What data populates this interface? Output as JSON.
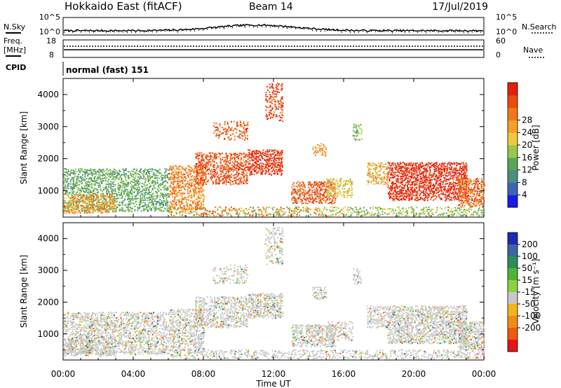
{
  "header": {
    "title": "Hokkaido East (fitACF)",
    "beam": "Beam 14",
    "date": "17/Jul/2019"
  },
  "noise_panel": {
    "left_label": "N.Sky",
    "right_label": "N.Search",
    "ticks_left": [
      "10^5",
      "10^0"
    ],
    "ticks_right": [
      "10^5",
      "10^0"
    ]
  },
  "freq_panel": {
    "left_label_line1": "Freq.",
    "left_label_line2": "[MHz]",
    "right_label": "Nave",
    "ticks_left": [
      "18",
      "8"
    ],
    "ticks_right": [
      "60",
      "0"
    ]
  },
  "cpid_panel": {
    "label": "CPID",
    "mode_text": "normal (fast) 151"
  },
  "time_axis": {
    "title": "Time UT",
    "ticks": [
      "00:00",
      "04:00",
      "08:00",
      "12:00",
      "16:00",
      "20:00",
      "00:00"
    ]
  },
  "chart_data": [
    {
      "type": "heatmap",
      "name_key": "power",
      "ylabel": "Slant Range [km]",
      "y_ticks": [
        1000,
        2000,
        3000,
        4000
      ],
      "ylim": [
        180,
        4500
      ],
      "xlim_hours": [
        0,
        24
      ],
      "colorbar_label": "Power [dB]",
      "colorbar_ticks": [
        "4",
        "8",
        "12",
        "16",
        "20",
        "24",
        "28"
      ],
      "colors": [
        "#1a1aee",
        "#3f64b4",
        "#4c8c82",
        "#5aa55a",
        "#96c84b",
        "#f0c83c",
        "#f5a028",
        "#f07819",
        "#eb4b0f",
        "#e61e0a"
      ]
    },
    {
      "type": "heatmap",
      "name_key": "velocity",
      "ylabel": "Slant Range [km]",
      "y_ticks": [
        1000,
        2000,
        3000,
        4000
      ],
      "ylim": [
        180,
        4500
      ],
      "xlim_hours": [
        0,
        24
      ],
      "colorbar_label": "Velocity [m s⁻¹]",
      "colorbar_ticks": [
        "200",
        "100",
        "50",
        "15",
        "-15",
        "-50",
        "-100",
        "-200"
      ],
      "colors": [
        "#1e28b4",
        "#3c64a0",
        "#2d8c5a",
        "#50b432",
        "#8cd23c",
        "#c8c8c8",
        "#f0b41e",
        "#f08c14",
        "#eb5a0f",
        "#e61414"
      ]
    }
  ]
}
